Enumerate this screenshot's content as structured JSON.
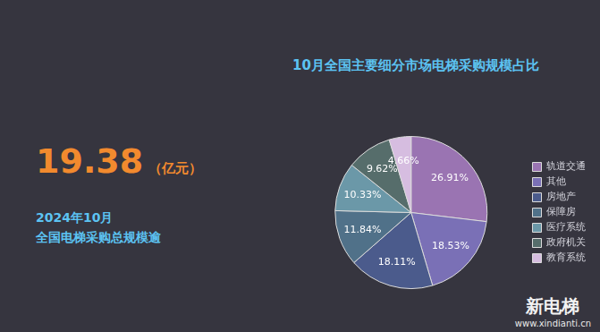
{
  "chart_data": {
    "type": "pie",
    "title": "10月全国主要细分市场电梯采购规模占比",
    "categories": [
      "轨道交通",
      "其他",
      "房地产",
      "保障房",
      "医疗系统",
      "政府机关",
      "教育系统"
    ],
    "values": [
      26.91,
      18.53,
      18.11,
      11.84,
      10.33,
      9.62,
      4.66
    ],
    "value_labels": [
      "26.91%",
      "18.53%",
      "18.11%",
      "11.84%",
      "10.33%",
      "9.62%",
      "4.66%"
    ],
    "colors": [
      "#9a74b2",
      "#7a70b6",
      "#4b5b8c",
      "#507189",
      "#6b98a8",
      "#566d6b",
      "#d6bde0"
    ],
    "data_labels": true,
    "legend": "right"
  },
  "headline": {
    "value": 19.38,
    "unit": "（亿元）",
    "lines": [
      "2024年10月",
      "全国电梯采购总规模逾"
    ]
  },
  "watermark": {
    "name": "新电梯",
    "url": "www.xindianti.cn"
  }
}
